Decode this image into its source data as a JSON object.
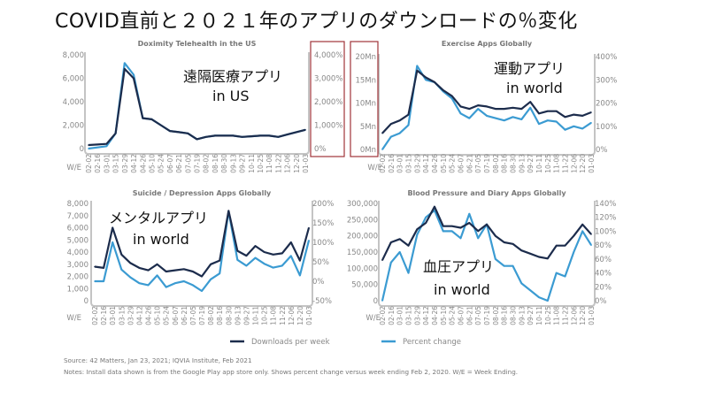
{
  "title": "COVID直前と２０２１年のアプリのダウンロードの％変化",
  "colors": {
    "downloads": "#1c2c4c",
    "percent": "#3b9bd2",
    "axis": "#c4c4c4",
    "highlight_box": "#a0343a"
  },
  "legend": {
    "downloads": "Downloads per week",
    "percent": "Percent change"
  },
  "footer": {
    "source": "Source: 42 Matters, Jan 23, 2021; IQVIA Institute, Feb 2021",
    "notes": "Notes: Install data shown is from the Google Play app store only. Shows percent change versus week ending Feb 2, 2020. W/E = Week Ending."
  },
  "chart_data": [
    {
      "type": "line",
      "title": "Doximity Telehealth in the US",
      "annotation": [
        "遠隔医療アプリ",
        "in US"
      ],
      "xlabel": "W/E",
      "categories": [
        "02-02",
        "02-16",
        "03-01",
        "03-15",
        "03-29",
        "04-12",
        "04-26",
        "05-10",
        "05-24",
        "06-07",
        "06-21",
        "07-05",
        "07-19",
        "08-02",
        "08-16",
        "08-30",
        "09-13",
        "09-27",
        "10-11",
        "10-25",
        "11-08",
        "11-22",
        "12-06",
        "12-20",
        "01-03"
      ],
      "left_axis": {
        "ticks": [
          "8,000",
          "6,000",
          "4,000",
          "2,000",
          "0"
        ],
        "ylim": [
          0,
          8000
        ]
      },
      "right_axis": {
        "ticks": [
          "4,000%",
          "3,000%",
          "2,000%",
          "1,000%",
          "0%"
        ],
        "ylim": [
          0,
          4000
        ],
        "highlighted": true
      },
      "series": [
        {
          "name": "Downloads per week",
          "axis": "left",
          "values": [
            300,
            350,
            400,
            1300,
            6800,
            6000,
            2600,
            2500,
            2000,
            1500,
            1400,
            1300,
            800,
            1000,
            1100,
            1100,
            1100,
            1000,
            1050,
            1100,
            1100,
            1000,
            1200,
            1400,
            1600
          ]
        },
        {
          "name": "Percent change",
          "axis": "right",
          "values": [
            0,
            50,
            100,
            650,
            3650,
            3150,
            1300,
            1250,
            1000,
            750,
            700,
            650,
            400,
            500,
            550,
            550,
            550,
            500,
            525,
            550,
            550,
            500,
            600,
            700,
            800
          ]
        }
      ]
    },
    {
      "type": "line",
      "title": "Exercise Apps Globally",
      "annotation": [
        "運動アプリ",
        "in world"
      ],
      "xlabel": "W/E",
      "categories": [
        "02-02",
        "02-16",
        "03-01",
        "03-15",
        "03-29",
        "04-12",
        "04-26",
        "05-10",
        "05-24",
        "06-07",
        "06-21",
        "07-05",
        "07-19",
        "08-02",
        "08-16",
        "08-30",
        "09-13",
        "09-27",
        "10-11",
        "10-25",
        "11-08",
        "11-22",
        "12-06",
        "12-20",
        "01-03"
      ],
      "left_axis": {
        "ticks": [
          "20Mn",
          "15Mn",
          "10Mn",
          "5Mn",
          "0Mn"
        ],
        "ylim": [
          0,
          20
        ],
        "highlighted": true
      },
      "right_axis": {
        "ticks": [
          "400%",
          "300%",
          "200%",
          "100%",
          "0%"
        ],
        "ylim": [
          0,
          400
        ]
      },
      "series": [
        {
          "name": "Downloads per week",
          "axis": "left",
          "values": [
            3.5,
            5.5,
            6.25,
            7.5,
            17,
            15.5,
            14.5,
            12.75,
            11.5,
            9.25,
            8.75,
            9.5,
            9.25,
            8.75,
            8.75,
            9,
            8.75,
            10.25,
            7.75,
            8.25,
            8.25,
            7,
            7.5,
            7.25,
            8
          ]
        },
        {
          "name": "Percent change",
          "axis": "right",
          "values": [
            0,
            55,
            70,
            105,
            360,
            300,
            290,
            250,
            220,
            155,
            135,
            175,
            145,
            135,
            125,
            140,
            130,
            180,
            110,
            125,
            120,
            85,
            100,
            90,
            115
          ]
        }
      ]
    },
    {
      "type": "line",
      "title": "Suicide / Depression Apps Globally",
      "annotation": [
        "メンタルアプリ",
        "in world"
      ],
      "xlabel": "W/E",
      "categories": [
        "02-02",
        "02-16",
        "03-01",
        "03-15",
        "03-29",
        "04-12",
        "04-26",
        "05-10",
        "05-24",
        "06-07",
        "06-21",
        "07-05",
        "07-19",
        "08-02",
        "08-16",
        "08-30",
        "09-13",
        "09-27",
        "10-11",
        "10-25",
        "11-08",
        "11-22",
        "12-06",
        "12-20",
        "01-03"
      ],
      "left_axis": {
        "ticks": [
          "8,000",
          "7,000",
          "6,000",
          "5,000",
          "4,000",
          "3,000",
          "2,000",
          "1,000",
          "0"
        ],
        "ylim": [
          0,
          8000
        ]
      },
      "right_axis": {
        "ticks": [
          "200%",
          "150%",
          "100%",
          "50%",
          "0%",
          "-50%"
        ],
        "ylim": [
          -50,
          200
        ]
      },
      "series": [
        {
          "name": "Downloads per week",
          "axis": "left",
          "values": [
            2800,
            2700,
            6000,
            3800,
            3100,
            2700,
            2500,
            3000,
            2400,
            2500,
            2600,
            2400,
            2000,
            3000,
            3300,
            7400,
            4100,
            3700,
            4500,
            4000,
            3800,
            3900,
            4800,
            3300,
            6000
          ]
        },
        {
          "name": "Percent change",
          "axis": "right",
          "values": [
            0,
            0,
            100,
            30,
            10,
            -5,
            -10,
            15,
            -15,
            -5,
            0,
            -10,
            -25,
            5,
            20,
            180,
            55,
            40,
            60,
            45,
            35,
            40,
            65,
            15,
            105
          ]
        }
      ]
    },
    {
      "type": "line",
      "title": "Blood Pressure and Diary Apps Globally",
      "annotation": [
        "血圧アプリ",
        "in world"
      ],
      "xlabel": "W/E",
      "categories": [
        "02-02",
        "02-16",
        "03-01",
        "03-15",
        "03-29",
        "04-12",
        "04-26",
        "05-10",
        "05-24",
        "06-07",
        "06-21",
        "07-05",
        "07-19",
        "08-02",
        "08-16",
        "08-30",
        "09-13",
        "09-27",
        "10-11",
        "10-25",
        "11-08",
        "11-22",
        "12-06",
        "12-20",
        "01-03"
      ],
      "left_axis": {
        "ticks": [
          "300,000",
          "250,000",
          "200,000",
          "150,000",
          "100,000",
          "50,000",
          "0"
        ],
        "ylim": [
          0,
          300000
        ]
      },
      "right_axis": {
        "ticks": [
          "140%",
          "120%",
          "100%",
          "80%",
          "60%",
          "40%",
          "20%",
          "0%"
        ],
        "ylim": [
          0,
          140
        ]
      },
      "series": [
        {
          "name": "Downloads per week",
          "axis": "left",
          "values": [
            125000,
            180000,
            190000,
            170000,
            220000,
            240000,
            290000,
            230000,
            230000,
            225000,
            240000,
            215000,
            235000,
            200000,
            180000,
            175000,
            155000,
            145000,
            135000,
            130000,
            170000,
            170000,
            200000,
            235000,
            205000
          ]
        },
        {
          "name": "Percent change",
          "axis": "right",
          "values": [
            0,
            55,
            70,
            40,
            95,
            120,
            130,
            100,
            100,
            90,
            125,
            90,
            110,
            60,
            50,
            50,
            25,
            15,
            5,
            0,
            40,
            35,
            70,
            100,
            80
          ]
        }
      ]
    }
  ]
}
